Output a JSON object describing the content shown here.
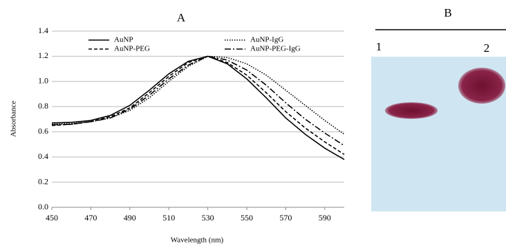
{
  "chart_data": {
    "type": "line",
    "title": "A",
    "x_label": "Wavelength (nm)",
    "y_label": "Absorbance",
    "x": [
      450,
      460,
      470,
      480,
      490,
      500,
      510,
      520,
      530,
      540,
      550,
      560,
      570,
      580,
      590,
      600
    ],
    "series": [
      {
        "name": "AuNP",
        "color": "#000000",
        "dash": "none",
        "values": [
          0.67,
          0.675,
          0.69,
          0.73,
          0.81,
          0.93,
          1.06,
          1.16,
          1.2,
          1.14,
          1.02,
          0.87,
          0.71,
          0.58,
          0.47,
          0.38
        ]
      },
      {
        "name": "AuNP-IgG",
        "color": "#000000",
        "dash": "1.5 2",
        "values": [
          0.66,
          0.665,
          0.68,
          0.71,
          0.77,
          0.87,
          1.0,
          1.12,
          1.2,
          1.19,
          1.14,
          1.05,
          0.93,
          0.81,
          0.69,
          0.58
        ]
      },
      {
        "name": "AuNP-PEG",
        "color": "#000000",
        "dash": "5 3",
        "values": [
          0.65,
          0.66,
          0.68,
          0.72,
          0.79,
          0.91,
          1.04,
          1.15,
          1.2,
          1.15,
          1.05,
          0.91,
          0.76,
          0.63,
          0.52,
          0.42
        ]
      },
      {
        "name": "AuNP-PEG-IgG",
        "color": "#000000",
        "dash": "9 3 2 3",
        "values": [
          0.655,
          0.66,
          0.68,
          0.71,
          0.78,
          0.89,
          1.02,
          1.13,
          1.2,
          1.17,
          1.09,
          0.97,
          0.83,
          0.7,
          0.59,
          0.49
        ]
      }
    ],
    "xlim": [
      450,
      600
    ],
    "xticks": [
      450,
      470,
      490,
      510,
      530,
      550,
      570,
      590
    ],
    "ylim": [
      0,
      1.4
    ],
    "yticks": [
      {
        "value": 0,
        "label": "0.0"
      },
      0.2,
      0.4,
      0.6,
      0.8,
      {
        "value": 1,
        "label": "1.0"
      },
      1.2,
      1.4
    ],
    "grid": true,
    "legend": "top"
  },
  "panel_b": {
    "title": "B",
    "lanes": [
      "1",
      "2"
    ]
  }
}
